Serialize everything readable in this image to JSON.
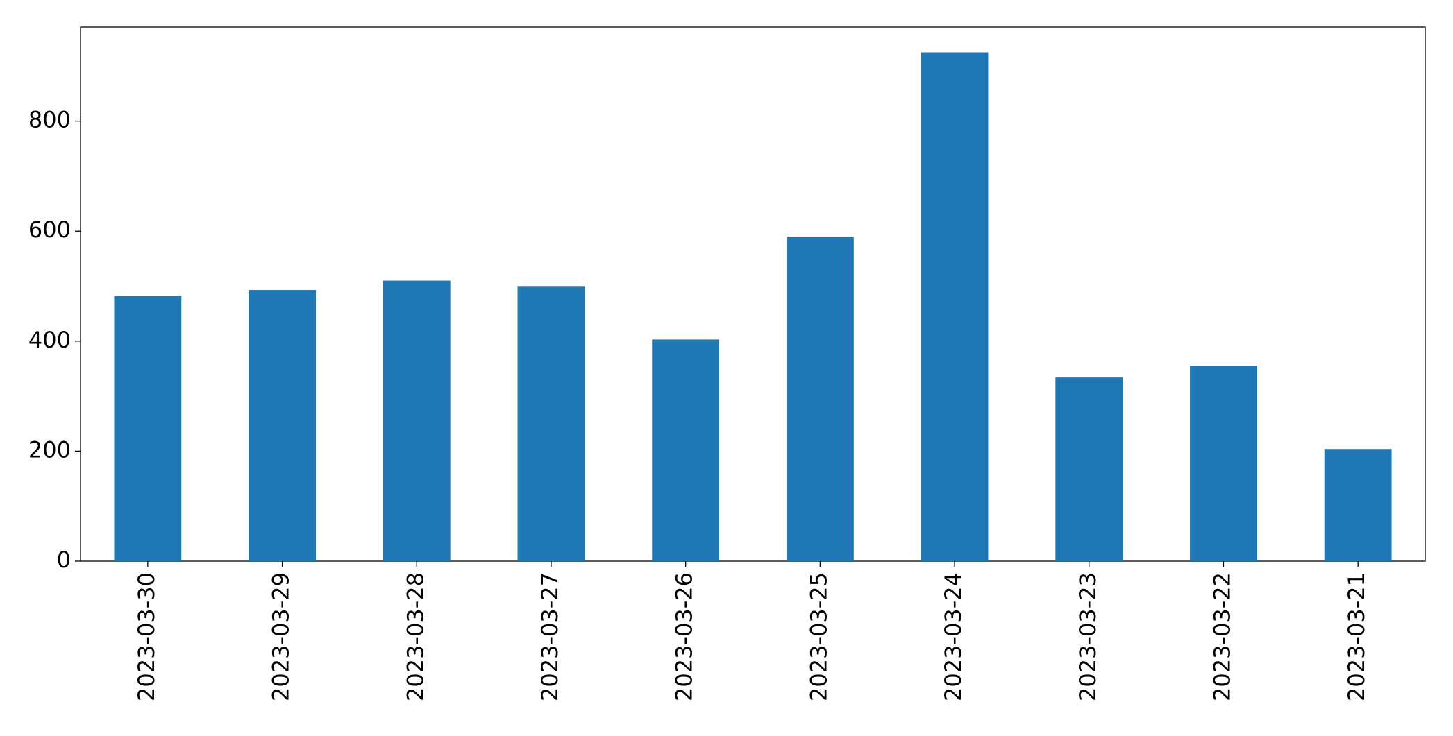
{
  "chart_data": {
    "type": "bar",
    "categories": [
      "2023-03-30",
      "2023-03-29",
      "2023-03-28",
      "2023-03-27",
      "2023-03-26",
      "2023-03-25",
      "2023-03-24",
      "2023-03-23",
      "2023-03-22",
      "2023-03-21"
    ],
    "values": [
      482,
      493,
      510,
      499,
      403,
      590,
      925,
      334,
      355,
      204
    ],
    "color": "#1f77b4",
    "ylim": [
      0,
      971
    ],
    "yticks": [
      0,
      200,
      400,
      600,
      800
    ],
    "grid": false
  }
}
